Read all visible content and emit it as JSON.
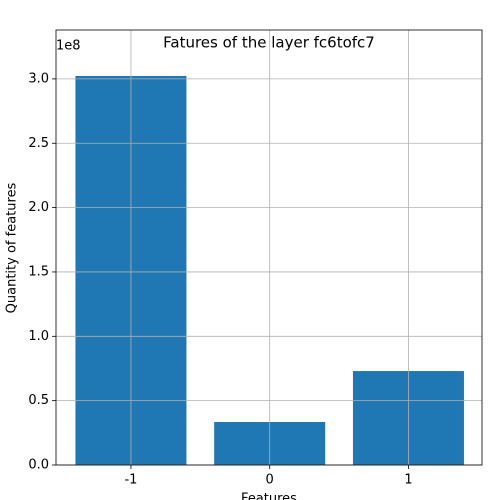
{
  "chart_data": {
    "type": "bar",
    "title": "Fatures of the layer fc6tofc7",
    "xlabel": "Features",
    "ylabel": "Quantity of features",
    "offset_label": "1e8",
    "x": [
      -1,
      0,
      1
    ],
    "values": [
      302300000,
      33400000,
      73000000
    ],
    "color": "#1f77b4",
    "xlim": [
      -1.54,
      1.53
    ],
    "xticks": [
      -1,
      0,
      1
    ],
    "ylim": [
      0,
      338000000
    ],
    "yticks": [
      {
        "value": 0,
        "label": "0.0"
      },
      {
        "value": 50000000,
        "label": "0.5"
      },
      {
        "value": 100000000,
        "label": "1.0"
      },
      {
        "value": 150000000,
        "label": "1.5"
      },
      {
        "value": 200000000,
        "label": "2.0"
      },
      {
        "value": 250000000,
        "label": "2.5"
      },
      {
        "value": 300000000,
        "label": "3.0"
      }
    ],
    "grid": true
  }
}
